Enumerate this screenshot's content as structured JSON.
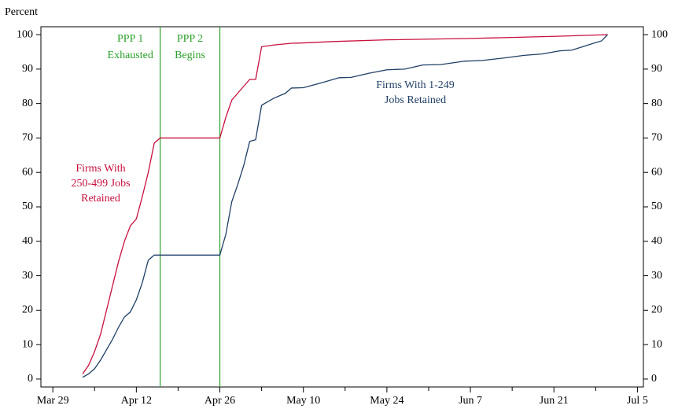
{
  "chart_data": {
    "type": "line",
    "y_axis_label": "Percent",
    "xlim": [
      "Mar 27",
      "Jul 6"
    ],
    "xticks": [
      "Mar 29",
      "Apr 12",
      "Apr 26",
      "May 10",
      "May 24",
      "Jun 7",
      "Jun 21",
      "Jul 5"
    ],
    "xminorticks": [
      "Apr 5",
      "Apr 19",
      "May 3",
      "May 17",
      "May 31",
      "Jun 14",
      "Jun 28"
    ],
    "ylim": [
      -2.3,
      102.3
    ],
    "yticks": [
      0,
      10,
      20,
      30,
      40,
      50,
      60,
      70,
      80,
      90,
      100
    ],
    "right_axis": true,
    "vlines": [
      {
        "x": "Apr 16",
        "color": "#2ca02c",
        "text": [
          "PPP 1",
          "Exhausted"
        ]
      },
      {
        "x": "Apr 26",
        "color": "#2ca02c",
        "text": [
          "PPP 2",
          "Begins"
        ]
      }
    ],
    "series": [
      {
        "label": [
          "Firms With",
          "250-499 Jobs",
          "Retained"
        ],
        "color": "#c8103e",
        "x": [
          "Apr 3",
          "Apr 4",
          "Apr 5",
          "Apr 6",
          "Apr 7",
          "Apr 8",
          "Apr 9",
          "Apr 10",
          "Apr 11",
          "Apr 12",
          "Apr 13",
          "Apr 14",
          "Apr 15",
          "Apr 16",
          "Apr 26",
          "Apr 27",
          "Apr 28",
          "Apr 29",
          "Apr 30",
          "May 1",
          "May 2",
          "May 3",
          "May 5",
          "May 8",
          "May 10",
          "May 15",
          "May 24",
          "Jun 7",
          "Jun 21",
          "Jun 30"
        ],
        "values": [
          1.5,
          4,
          8,
          13,
          20,
          27,
          34,
          40,
          44.5,
          46.5,
          53,
          60,
          68.5,
          70,
          70,
          76,
          81,
          83,
          85,
          87,
          87,
          96.5,
          97,
          97.5,
          97.6,
          98,
          98.5,
          98.9,
          99.5,
          100
        ]
      },
      {
        "label": [
          "Firms With 1-249",
          "Jobs Retained"
        ],
        "color": "#1f3f66",
        "x": [
          "Apr 3",
          "Apr 4",
          "Apr 5",
          "Apr 6",
          "Apr 7",
          "Apr 8",
          "Apr 9",
          "Apr 10",
          "Apr 11",
          "Apr 12",
          "Apr 13",
          "Apr 14",
          "Apr 15",
          "Apr 26",
          "Apr 27",
          "Apr 28",
          "Apr 29",
          "Apr 30",
          "May 1",
          "May 2",
          "May 3",
          "May 5",
          "May 7",
          "May 8",
          "May 10",
          "May 13",
          "May 16",
          "May 18",
          "May 21",
          "May 24",
          "May 27",
          "May 30",
          "Jun 2",
          "Jun 6",
          "Jun 9",
          "Jun 13",
          "Jun 16",
          "Jun 19",
          "Jun 22",
          "Jun 24",
          "Jun 26",
          "Jun 28",
          "Jun 29",
          "Jun 30"
        ],
        "values": [
          0.5,
          1.5,
          3,
          5.5,
          8.5,
          11.5,
          15,
          18,
          19.5,
          23,
          28,
          34.5,
          36,
          36,
          42,
          51.5,
          56.5,
          62,
          69,
          69.5,
          79.5,
          81.5,
          83,
          84.5,
          84.6,
          86,
          87.5,
          87.6,
          88.8,
          89.8,
          90,
          91.2,
          91.3,
          92.3,
          92.5,
          93.3,
          94,
          94.4,
          95.3,
          95.5,
          96.6,
          97.7,
          98.2,
          100
        ]
      }
    ]
  }
}
